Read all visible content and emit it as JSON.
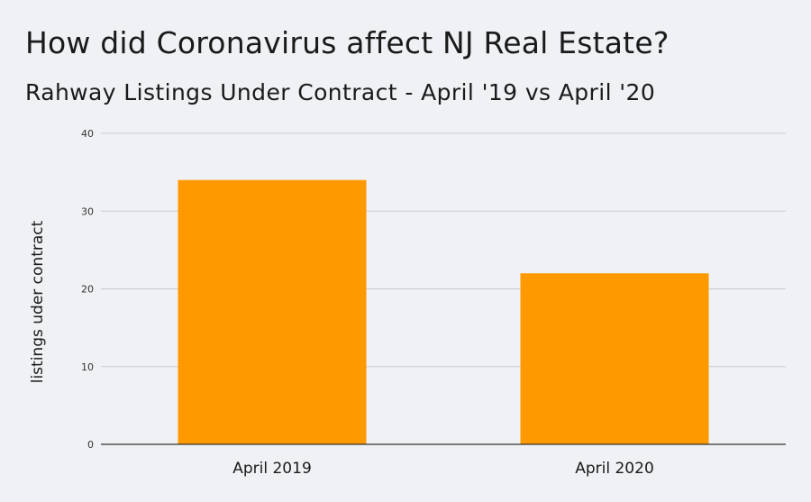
{
  "title": "How did Coronavirus affect NJ Real Estate?",
  "subtitle": "Rahway Listings Under Contract - April '19 vs April '20",
  "colors": {
    "bar": "#ff9900",
    "grid": "#c8cacd",
    "axis": "#333333",
    "background": "#eff1f4"
  },
  "chart_data": {
    "type": "bar",
    "categories": [
      "April 2019",
      "April 2020"
    ],
    "values": [
      34,
      22
    ],
    "ylabel": "listings uder contract",
    "xlabel": "",
    "ylim": [
      0,
      40
    ],
    "yticks": [
      0,
      10,
      20,
      30,
      40
    ],
    "grid": true,
    "legend": "none"
  }
}
